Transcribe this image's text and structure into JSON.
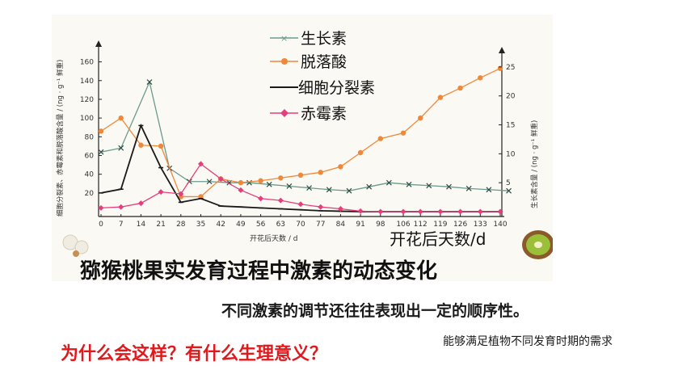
{
  "chart_data": {
    "type": "line",
    "title": "猕猴桃果实发育过程中激素的动态变化",
    "xlabel": "开花后天数 / d",
    "xlabel_large": "开花后天数/d",
    "ylabel_left": "细胞分裂素、赤霉素和脱落酸含量 / (ng · g⁻¹ 鲜重)",
    "ylabel_right": "生长素含量 / (ng · g⁻¹ 鲜重)",
    "x": [
      0,
      7,
      14,
      21,
      28,
      35,
      42,
      49,
      56,
      63,
      70,
      77,
      84,
      91,
      98,
      106,
      112,
      119,
      126,
      133,
      140
    ],
    "x_ticks": [
      "0",
      "7",
      "14",
      "21",
      "28",
      "35",
      "42",
      "49",
      "56",
      "63",
      "70",
      "77",
      "84",
      "91",
      "98",
      "106",
      "112",
      "119",
      "126",
      "133",
      "140"
    ],
    "y_left_ticks": [
      "20",
      "40",
      "60",
      "80",
      "100",
      "120",
      "140",
      "160"
    ],
    "y_right_ticks": [
      "5",
      "10",
      "15",
      "20",
      "25"
    ],
    "ylim_left": [
      0,
      170
    ],
    "ylim_right": [
      0,
      27.5
    ],
    "legend_position": "top-center",
    "series": [
      {
        "name": "生长素",
        "axis": "right",
        "color": "#6a9a8e",
        "marker": "x",
        "x": [
          0,
          7,
          17,
          24,
          31,
          38,
          45,
          52,
          59,
          66,
          73,
          80,
          87,
          94,
          101,
          108,
          115,
          122,
          129,
          136,
          143
        ],
        "values": [
          10.3,
          11,
          22.4,
          7.5,
          5.2,
          5.2,
          5,
          5,
          4.7,
          4.4,
          4.1,
          3.8,
          3.6,
          4.3,
          5,
          4.7,
          4.5,
          4.3,
          4,
          3.8,
          3.6
        ]
      },
      {
        "name": "脱落酸",
        "axis": "left",
        "color": "#f0883a",
        "marker": "circle",
        "x": [
          0,
          7,
          14,
          21,
          28,
          35,
          42,
          49,
          56,
          63,
          70,
          77,
          84,
          91,
          98,
          106,
          112,
          119,
          126,
          133,
          140
        ],
        "values": [
          86,
          100,
          71,
          70,
          16,
          16,
          35,
          31,
          33,
          36,
          39,
          42,
          48,
          63,
          78,
          84,
          100,
          122,
          132,
          143,
          153
        ]
      },
      {
        "name": "细胞分裂素",
        "axis": "left",
        "color": "#1a1a1a",
        "marker": "dash",
        "x": [
          0,
          7,
          14,
          21,
          28,
          35,
          42,
          49,
          56,
          63,
          70,
          77,
          84,
          91,
          98,
          106,
          112,
          119,
          126,
          133,
          140
        ],
        "values": [
          20,
          24,
          92,
          47,
          10,
          14,
          6,
          5,
          4,
          3,
          2,
          1,
          0.5,
          0,
          0,
          0,
          0,
          0,
          0,
          0,
          0
        ]
      },
      {
        "name": "赤霉素",
        "axis": "left",
        "color": "#e63e7c",
        "marker": "diamond",
        "x": [
          0,
          7,
          14,
          21,
          28,
          35,
          42,
          49,
          56,
          63,
          70,
          77,
          84,
          91,
          98,
          106,
          112,
          119,
          126,
          133,
          140
        ],
        "values": [
          4,
          5,
          9,
          21,
          19,
          51,
          35,
          23,
          14,
          12,
          8,
          5,
          3,
          0.5,
          0,
          0,
          0,
          0,
          0,
          0,
          0
        ]
      }
    ]
  },
  "statement": "不同激素的调节还往往表现出一定的顺序性。",
  "question": "为什么会这样？有什么生理意义？",
  "answer": "能够满足植物不同发育时期的需求"
}
